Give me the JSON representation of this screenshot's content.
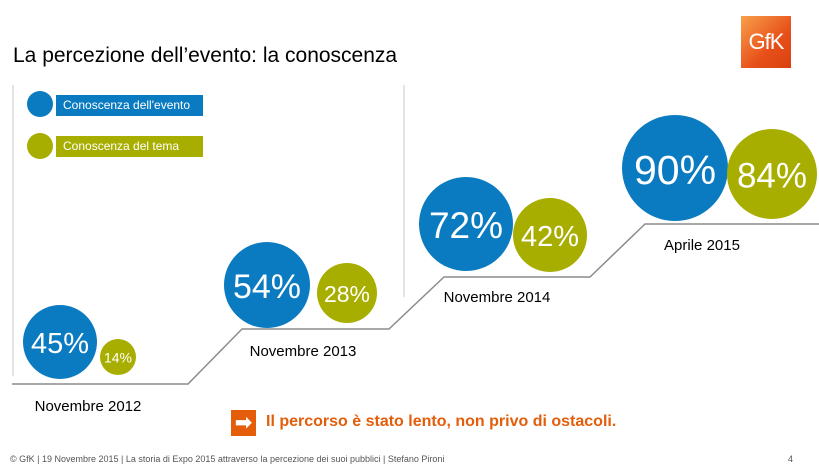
{
  "slide": {
    "title": "La percezione dell’evento: la conoscenza",
    "logo_text": "GfK",
    "callout": "Il percorso è stato lento, non privo di ostacoli.",
    "callout_icon": "arrow-right-icon",
    "footer": "© GfK  | 19 Novembre 2015  | La storia di Expo 2015 attraverso la percezione dei suoi pubblici | Stefano Pironi",
    "page_number": "4"
  },
  "colors": {
    "event": "#0a7bc1",
    "theme": "#a8ae00",
    "accent": "#e35d0a"
  },
  "chart_data": {
    "type": "bubble",
    "categories": [
      "Novembre 2012",
      "Novembre 2013",
      "Novembre 2014",
      "Aprile 2015"
    ],
    "series": [
      {
        "name": "Conoscenza dell'evento",
        "values": [
          45,
          54,
          72,
          90
        ],
        "labels": [
          "45%",
          "54%",
          "72%",
          "90%"
        ]
      },
      {
        "name": "Conoscenza del tema",
        "values": [
          14,
          28,
          42,
          84
        ],
        "labels": [
          "14%",
          "28%",
          "42%",
          "84%"
        ]
      }
    ],
    "unit": "%",
    "legend": "top-left"
  }
}
